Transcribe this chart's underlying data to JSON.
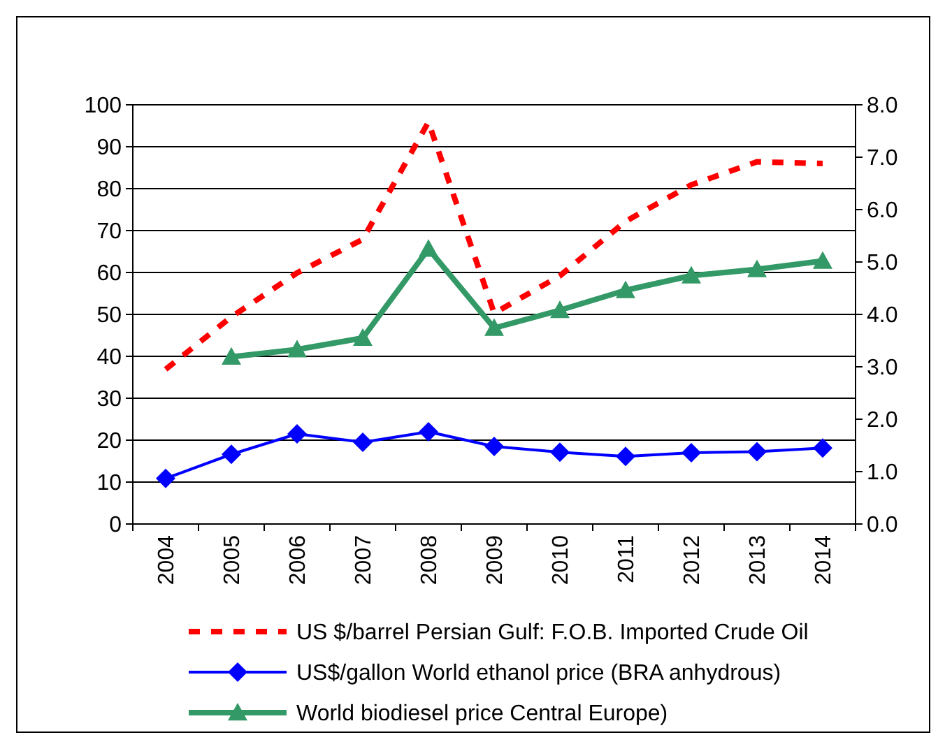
{
  "chart_data": {
    "type": "line",
    "categories": [
      "2004",
      "2005",
      "2006",
      "2007",
      "2008",
      "2009",
      "2010",
      "2011",
      "2012",
      "2013",
      "2014"
    ],
    "series": [
      {
        "name": "US $/barrel Persian Gulf: F.O.B. Imported Crude Oil",
        "color": "#ff0000",
        "line_style": "dashed",
        "marker": "none",
        "values": [
          36.9,
          49.4,
          59.9,
          67.9,
          95.9,
          50.3,
          59.2,
          72.2,
          80.9,
          86.4,
          86.0
        ]
      },
      {
        "name": "US$/gallon World ethanol price (BRA anhydrous)",
        "color": "#0000ff",
        "line_style": "solid",
        "marker": "diamond",
        "axis": "y2",
        "values": [
          0.87,
          1.33,
          1.72,
          1.56,
          1.76,
          1.48,
          1.37,
          1.29,
          1.36,
          1.38,
          1.45
        ]
      },
      {
        "name": "World biodiesel price Central Europe)",
        "color": "#339966",
        "line_style": "solid",
        "marker": "triangle",
        "axis": "y2",
        "values": [
          null,
          3.19,
          3.33,
          3.55,
          5.25,
          3.74,
          4.08,
          4.46,
          4.74,
          4.86,
          5.02
        ]
      }
    ],
    "ylim": [
      0,
      100
    ],
    "yticks": [
      0,
      10,
      20,
      30,
      40,
      50,
      60,
      70,
      80,
      90,
      100
    ],
    "y2lim": [
      0,
      8
    ],
    "y2ticks": [
      {
        "value": 0,
        "label": "0.0"
      },
      {
        "value": 1,
        "label": "1.0"
      },
      {
        "value": 2,
        "label": "2.0"
      },
      {
        "value": 3,
        "label": "3.0"
      },
      {
        "value": 4,
        "label": "4.0"
      },
      {
        "value": 5,
        "label": "5.0"
      },
      {
        "value": 6,
        "label": "6.0"
      },
      {
        "value": 7,
        "label": "7.0"
      },
      {
        "value": 8,
        "label": "8.0"
      }
    ],
    "grid": "y",
    "legend": "bottom"
  }
}
